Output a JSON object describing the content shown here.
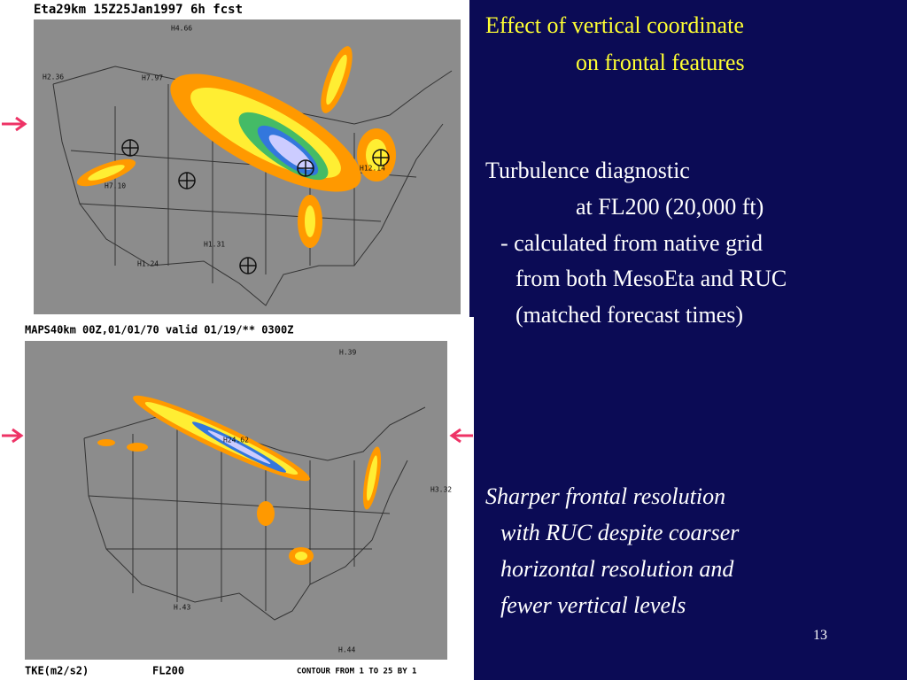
{
  "slide": {
    "heading": [
      "Effect of vertical coordinate",
      "on frontal features"
    ],
    "body": [
      "Turbulence diagnostic",
      "at FL200 (20,000 ft)",
      "- calculated from native grid",
      "from both MesoEta and RUC",
      "(matched forecast times)"
    ],
    "conclusion": [
      "Sharper frontal resolution",
      "with RUC despite coarser",
      "horizontal resolution and",
      "fewer vertical levels"
    ],
    "page_number": "13"
  },
  "maps": [
    {
      "header": "Eta29km  15Z25Jan1997   6h fcst",
      "labels": [
        "H7.97",
        "H2.36",
        "H7.10",
        "H1.31",
        "H1.24",
        "H12.14",
        "H4.66"
      ]
    },
    {
      "header": "MAPS40km   00Z,01/01/70 valid 01/19/** 0300Z",
      "labels": [
        "H24.62",
        "H.39",
        "H3.32",
        "H.43",
        "H.44"
      ],
      "footer_left": "TKE(m2/s2)",
      "footer_mid": "FL200",
      "footer_right": "CONTOUR FROM 1 TO 25 BY 1"
    }
  ]
}
